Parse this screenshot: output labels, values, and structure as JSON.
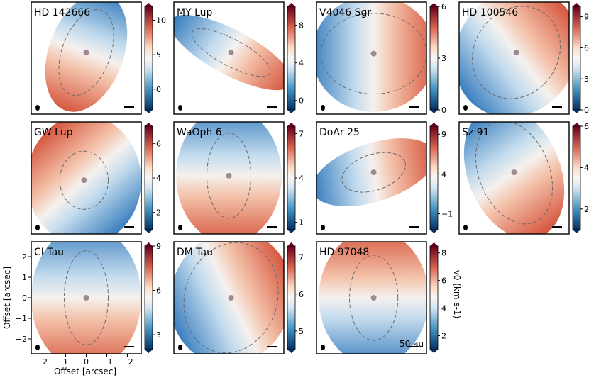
{
  "chart_data": {
    "type": "heatmap",
    "figure_description": "Grid of line-of-sight velocity maps (v0) for protoplanetary disks with colorbars",
    "colorbar_label": "v$_0$ (km s$^{-1}$)",
    "colorbar_label_text": "v0 (km s-1)",
    "x_axis_label": "Offset [arcsec]",
    "y_axis_label": "Offset [arcsec]",
    "x_ticks": [
      "2",
      "1",
      "0",
      "−1",
      "−2"
    ],
    "y_ticks": [
      "2",
      "1",
      "0",
      "−1",
      "−2"
    ],
    "x_tick_values": [
      2,
      1,
      0,
      -1,
      -2
    ],
    "y_tick_values": [
      2,
      1,
      0,
      -1,
      -2
    ],
    "scale_bar_label": "50 au",
    "colors": {
      "blue": "#2166ac",
      "white": "#f7f7f7",
      "red": "#b2182b",
      "contour": "#6b6b6b"
    },
    "panels": [
      {
        "name": "HD 142666",
        "vmin": -3,
        "vmax": 12,
        "cbar_ticks": [
          "0",
          "5",
          "10"
        ],
        "cbar_tick_values": [
          0,
          5,
          10
        ]
      },
      {
        "name": "MY Lup",
        "vmin": -1,
        "vmax": 10,
        "cbar_ticks": [
          "0",
          "4",
          "8"
        ],
        "cbar_tick_values": [
          0,
          4,
          8
        ]
      },
      {
        "name": "V4046 Sgr",
        "vmin": 0,
        "vmax": 6,
        "cbar_ticks": [
          "0",
          "3",
          "6"
        ],
        "cbar_tick_values": [
          0,
          3,
          6
        ]
      },
      {
        "name": "HD 100546",
        "vmin": 0,
        "vmax": 10,
        "cbar_ticks": [
          "0",
          "3",
          "6",
          "9"
        ],
        "cbar_tick_values": [
          0,
          3,
          6,
          9
        ]
      },
      {
        "name": "GW Lup",
        "vmin": 1,
        "vmax": 7,
        "cbar_ticks": [
          "2",
          "4",
          "6"
        ],
        "cbar_tick_values": [
          2,
          4,
          6
        ]
      },
      {
        "name": "WaOph 6",
        "vmin": 0.5,
        "vmax": 7.5,
        "cbar_ticks": [
          "1",
          "4",
          "7"
        ],
        "cbar_tick_values": [
          1,
          4,
          7
        ]
      },
      {
        "name": "DoAr 25",
        "vmin": -3,
        "vmax": 10,
        "cbar_ticks": [
          "−1",
          "4",
          "9"
        ],
        "cbar_tick_values": [
          -1,
          4,
          9
        ]
      },
      {
        "name": "Sz 91",
        "vmin": 1,
        "vmax": 6,
        "cbar_ticks": [
          "2",
          "4",
          "6"
        ],
        "cbar_tick_values": [
          2,
          4,
          6
        ]
      },
      {
        "name": "CI Tau",
        "vmin": 2,
        "vmax": 9,
        "cbar_ticks": [
          "3",
          "6",
          "9"
        ],
        "cbar_tick_values": [
          3,
          6,
          9
        ]
      },
      {
        "name": "DM Tau",
        "vmin": 4.5,
        "vmax": 7.3,
        "cbar_ticks": [
          "5",
          "6",
          "7"
        ],
        "cbar_tick_values": [
          5,
          6,
          7
        ]
      },
      {
        "name": "HD 97048",
        "vmin": 1,
        "vmax": 8.5,
        "cbar_ticks": [
          "2",
          "4",
          "6",
          "8"
        ],
        "cbar_tick_values": [
          2,
          4,
          6,
          8
        ]
      }
    ]
  }
}
